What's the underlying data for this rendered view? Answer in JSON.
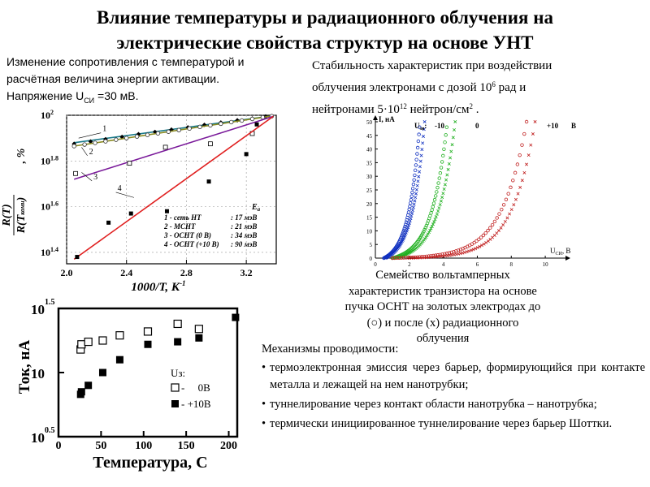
{
  "title_line1": "Влияние температуры и радиационного облучения на",
  "title_line2": "электрические свойства структур на основе УНТ",
  "left_text": {
    "line1": "Изменение сопротивления с температурой и",
    "line2": "расчётная величина энергии активации.",
    "line3_prefix": "Напряжение U",
    "line3_sub": "СИ",
    "line3_suffix": " =30 мВ."
  },
  "right_text": {
    "line1": "Стабильность характеристик при воздействии",
    "line2_prefix": "облучения электронами с дозой 10",
    "line2_sup": "6",
    "line2_suffix": " рад и",
    "line3_prefix": "нейтронами 5·10",
    "line3_sup": "12",
    "line3_mid": " нейтрон/см",
    "line3_sup2": "2",
    "line3_suffix": " ."
  },
  "caption": "Семейство вольтамперных характеристик транзистора на основе пучка ОСНТ на золотых электродах до (○) и после (х) радиационного облучения",
  "mechanisms": {
    "heading": "Механизмы проводимости:",
    "items": [
      "термоэлектронная эмиссия через барьер, формирующийся при контакте металла и лежащей на нем нанотрубки;",
      "туннелирование через контакт области нанотрубка – нанотрубка;",
      "термически инициированное туннелирование через барьер Шоттки."
    ]
  },
  "colors": {
    "series1": "#1a7a8a",
    "series2": "#8a8a20",
    "series3": "#7a1a9a",
    "series4": "#e02020",
    "iv_blue": "#1030c0",
    "iv_green": "#20b020",
    "iv_red": "#c02020"
  },
  "chart_data": [
    {
      "type": "scatter",
      "xlabel": "1000/T, К",
      "xlabel_sup": "-1",
      "ylabel_num": "R(T)",
      "ylabel_den": "R(T",
      "ylabel_den_sub": "комн",
      "ylabel_den_end": ")",
      "ylabel_unit": ", %",
      "log_y": true,
      "xlim": [
        2.0,
        3.4
      ],
      "ylim_log10": [
        1.35,
        2.0
      ],
      "x_ticks": [
        "2.0",
        "2.4",
        "2.8",
        "3.2"
      ],
      "x_tick_values": [
        2.0,
        2.4,
        2.8,
        3.2
      ],
      "y_ticks": [
        {
          "base": "10",
          "exp": "2",
          "value": 2.0
        },
        {
          "base": "10",
          "exp": "1.8",
          "value": 1.8
        },
        {
          "base": "10",
          "exp": "1.6",
          "value": 1.6
        },
        {
          "base": "10",
          "exp": "1.4",
          "value": 1.4
        }
      ],
      "legend_header": "E",
      "legend_header_sub": "a",
      "legend": [
        {
          "label": "1 - сеть НТ",
          "ea": ": 17 мэВ"
        },
        {
          "label": "2 - МСНТ",
          "ea": ": 21 мэВ"
        },
        {
          "label": "3 - ОСНТ (0 В)",
          "ea": ": 34 мэВ"
        },
        {
          "label": "4 - ОСНТ (+10 В)",
          "ea": ": 90 мэВ"
        }
      ],
      "curve_labels": [
        "1",
        "2",
        "3",
        "4"
      ],
      "series": [
        {
          "name": "1",
          "line": [
            [
              2.05,
              1.88
            ],
            [
              3.38,
              1.998
            ]
          ],
          "x": [
            2.05,
            2.16,
            2.26,
            2.37,
            2.48,
            2.59,
            2.7,
            2.81,
            2.92,
            3.03,
            3.14,
            3.24,
            3.33
          ],
          "y": [
            1.875,
            1.885,
            1.895,
            1.905,
            1.917,
            1.927,
            1.937,
            1.947,
            1.958,
            1.968,
            1.978,
            1.986,
            1.995
          ]
        },
        {
          "name": "2",
          "line": [
            [
              2.05,
              1.865
            ],
            [
              3.38,
              1.998
            ]
          ],
          "x": [
            2.05,
            2.12,
            2.19,
            2.26,
            2.33,
            2.4,
            2.47,
            2.54,
            2.61,
            2.68,
            2.75,
            2.82,
            2.89,
            2.96,
            3.03,
            3.1,
            3.17,
            3.24,
            3.31,
            3.37
          ],
          "y": [
            1.865,
            1.872,
            1.879,
            1.886,
            1.893,
            1.9,
            1.907,
            1.914,
            1.921,
            1.928,
            1.935,
            1.942,
            1.949,
            1.956,
            1.963,
            1.97,
            1.977,
            1.984,
            1.991,
            1.996
          ]
        },
        {
          "name": "3",
          "line": [
            [
              2.05,
              1.72
            ],
            [
              3.38,
              1.995
            ]
          ],
          "x": [
            2.06,
            2.42,
            2.66,
            2.96,
            3.24
          ],
          "y": [
            1.745,
            1.79,
            1.86,
            1.875,
            1.92
          ]
        },
        {
          "name": "4",
          "line": [
            [
              2.05,
              1.37
            ],
            [
              3.38,
              1.995
            ]
          ],
          "x": [
            2.07,
            2.28,
            2.43,
            2.67,
            2.95,
            3.2,
            3.27
          ],
          "y": [
            1.38,
            1.53,
            1.57,
            1.58,
            1.71,
            1.83,
            1.96
          ]
        }
      ]
    },
    {
      "type": "line",
      "xlabel_prefix": "U",
      "xlabel_sub": "СИ",
      "xlabel_suffix": ", В",
      "ylabel": "I, нА",
      "title_prefix": "U",
      "title_sub": "зи",
      "title_suffix": ":",
      "xlim": [
        0,
        11
      ],
      "ylim": [
        0,
        50
      ],
      "x_ticks": [
        "0",
        "2",
        "4",
        "6",
        "8",
        "10"
      ],
      "x_tick_values": [
        0,
        2,
        4,
        6,
        8,
        10
      ],
      "y_ticks": [
        "0",
        "5",
        "10",
        "15",
        "20",
        "25",
        "30",
        "35",
        "40",
        "45",
        "50"
      ],
      "y_tick_values": [
        0,
        5,
        10,
        15,
        20,
        25,
        30,
        35,
        40,
        45,
        50
      ],
      "curve_labels": [
        {
          "text": "-10",
          "color": "#000000"
        },
        {
          "text": "0",
          "color": "#000000"
        },
        {
          "text": "+10",
          "color": "#000000"
        },
        {
          "text": "В",
          "color": "#000000"
        }
      ],
      "series": [
        {
          "name": "-10",
          "color": "#1030c0",
          "x0": 0.5,
          "x1": 2.6,
          "k": 3.2,
          "ymax": 48
        },
        {
          "name": "-10",
          "color": "#1030c0",
          "x0": 0.6,
          "x1": 2.9,
          "k": 3.2,
          "ymax": 50
        },
        {
          "name": "0",
          "color": "#20b020",
          "x0": 1.0,
          "x1": 4.2,
          "k": 3.5,
          "ymax": 48
        },
        {
          "name": "0",
          "color": "#20b020",
          "x0": 1.2,
          "x1": 4.7,
          "k": 3.5,
          "ymax": 50
        },
        {
          "name": "+10",
          "color": "#c02020",
          "x0": 1.0,
          "x1": 8.9,
          "k": 5.5,
          "ymax": 50
        },
        {
          "name": "+10",
          "color": "#c02020",
          "x0": 2.0,
          "x1": 9.4,
          "k": 5.5,
          "ymax": 50
        }
      ]
    },
    {
      "type": "scatter",
      "xlabel": "Температура, С",
      "ylabel": "Ток, нА",
      "log_y": true,
      "xlim": [
        0,
        210
      ],
      "ylim_log10": [
        0.5,
        1.5
      ],
      "x_ticks": [
        "0",
        "50",
        "100",
        "150",
        "200"
      ],
      "x_tick_values": [
        0,
        50,
        100,
        150,
        200
      ],
      "y_ticks": [
        {
          "base": "10",
          "exp": "1.5",
          "value": 1.5
        },
        {
          "base": "10",
          "exp": "",
          "value": 1.0
        },
        {
          "base": "10",
          "exp": "0.5",
          "value": 0.5
        }
      ],
      "legend_title": "Uз:",
      "legend": [
        {
          "label": "-     0В"
        },
        {
          "label": "- +10В"
        }
      ],
      "series": [
        {
          "name": "0В",
          "marker": "open-square",
          "x": [
            26,
            27,
            35,
            52,
            72,
            105,
            140,
            165
          ],
          "y": [
            1.18,
            1.22,
            1.24,
            1.25,
            1.29,
            1.32,
            1.38,
            1.34
          ]
        },
        {
          "name": "+10В",
          "marker": "filled-square",
          "x": [
            26,
            27,
            35,
            52,
            72,
            105,
            140,
            165,
            208
          ],
          "y": [
            0.83,
            0.85,
            0.9,
            1.0,
            1.1,
            1.22,
            1.24,
            1.27,
            1.43
          ]
        }
      ]
    }
  ]
}
